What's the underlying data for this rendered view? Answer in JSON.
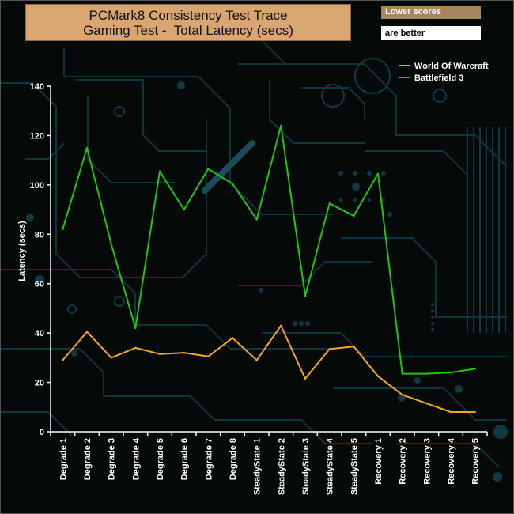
{
  "title": {
    "line1": "PCMark8 Consistency Test Trace",
    "line2": "Gaming Test -  Total Latency (secs)"
  },
  "note": {
    "line1": "Lower scores",
    "line2": "are better"
  },
  "colors": {
    "series1": "#f5a623",
    "series2": "#22c511",
    "title_bg": "#d9a571",
    "note_bg": "#a88660",
    "circuit": "#14404a"
  },
  "chart_data": {
    "type": "line",
    "ylabel": "Latency (secs)",
    "xlabel": "",
    "ylim": [
      0,
      140
    ],
    "yticks": [
      0,
      20,
      40,
      60,
      80,
      100,
      120,
      140
    ],
    "legend_position": "top-right",
    "categories": [
      "Degrade 1",
      "Degrade 2",
      "Degrade 3",
      "Degrade 4",
      "Degrade 5",
      "Degrade 6",
      "Degrade 7",
      "Degrade 8",
      "SteadyState 1",
      "SteadyState 2",
      "SteadyState 3",
      "SteadyState 4",
      "SteadyState 5",
      "Recovery 1",
      "Recovery 2",
      "Recovery 3",
      "Recovery 4",
      "Recovery 5"
    ],
    "series": [
      {
        "name": "World Of Warcraft",
        "values": [
          29,
          40.5,
          30,
          34,
          31.5,
          32,
          30.5,
          38,
          29,
          43,
          21.5,
          33.5,
          34.5,
          22.5,
          15,
          11.5,
          8,
          8
        ]
      },
      {
        "name": "Battlefield 3",
        "values": [
          82,
          115,
          76,
          42,
          105.5,
          90,
          106.5,
          100.5,
          86,
          124,
          55,
          92.5,
          87.5,
          104.5,
          23.5,
          23.5,
          24,
          25.5
        ]
      }
    ]
  }
}
